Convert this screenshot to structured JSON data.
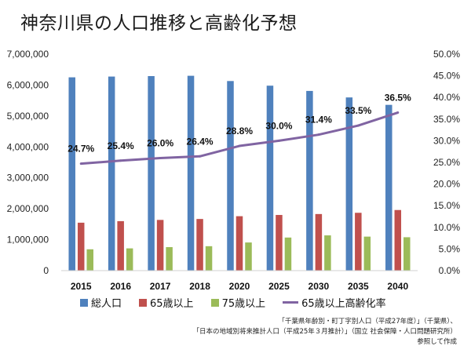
{
  "title": "神奈川県の人口推移と高齢化予想",
  "chart_data": {
    "type": "bar",
    "categories": [
      "2015",
      "2016",
      "2017",
      "2018",
      "2020",
      "2025",
      "2030",
      "2035",
      "2040"
    ],
    "series": [
      {
        "name": "総人口",
        "kind": "bar",
        "axis": "left",
        "color": "#4f81bd",
        "values": [
          6250000,
          6275000,
          6290000,
          6300000,
          6130000,
          5980000,
          5810000,
          5600000,
          5360000
        ]
      },
      {
        "name": "65歳以上",
        "kind": "bar",
        "axis": "left",
        "color": "#c0504d",
        "values": [
          1550000,
          1600000,
          1640000,
          1670000,
          1760000,
          1800000,
          1830000,
          1870000,
          1960000
        ]
      },
      {
        "name": "75歳以上",
        "kind": "bar",
        "axis": "left",
        "color": "#9bbb59",
        "values": [
          690000,
          720000,
          760000,
          790000,
          910000,
          1070000,
          1140000,
          1100000,
          1080000
        ]
      },
      {
        "name": "65歳以上高齢化率",
        "kind": "line",
        "axis": "right",
        "color": "#8064a2",
        "values": [
          24.7,
          25.4,
          26.0,
          26.4,
          28.8,
          30.0,
          31.4,
          33.5,
          36.5
        ],
        "labels": [
          "24.7%",
          "25.4%",
          "26.0%",
          "26.4%",
          "28.8%",
          "30.0%",
          "31.4%",
          "33.5%",
          "36.5%"
        ]
      }
    ],
    "y_left": {
      "min": 0,
      "max": 7000000,
      "step": 1000000,
      "ticks": [
        "0",
        "1,000,000",
        "2,000,000",
        "3,000,000",
        "4,000,000",
        "5,000,000",
        "6,000,000",
        "7,000,000"
      ]
    },
    "y_right": {
      "min": 0,
      "max": 50,
      "step": 5,
      "ticks": [
        "0.0%",
        "5.0%",
        "10.0%",
        "15.0%",
        "20.0%",
        "25.0%",
        "30.0%",
        "35.0%",
        "40.0%",
        "45.0%",
        "50.0%"
      ]
    },
    "grid": false,
    "legend_position": "bottom"
  },
  "source": {
    "line1": "「千葉県年齢別・町丁字別人口（平成27年度）」（千葉県）、",
    "line2": "「日本の地域別将来推計人口（平成25年３月推計）」（国立 社会保障・人口問題研究所）",
    "line3": "参照して作成"
  }
}
